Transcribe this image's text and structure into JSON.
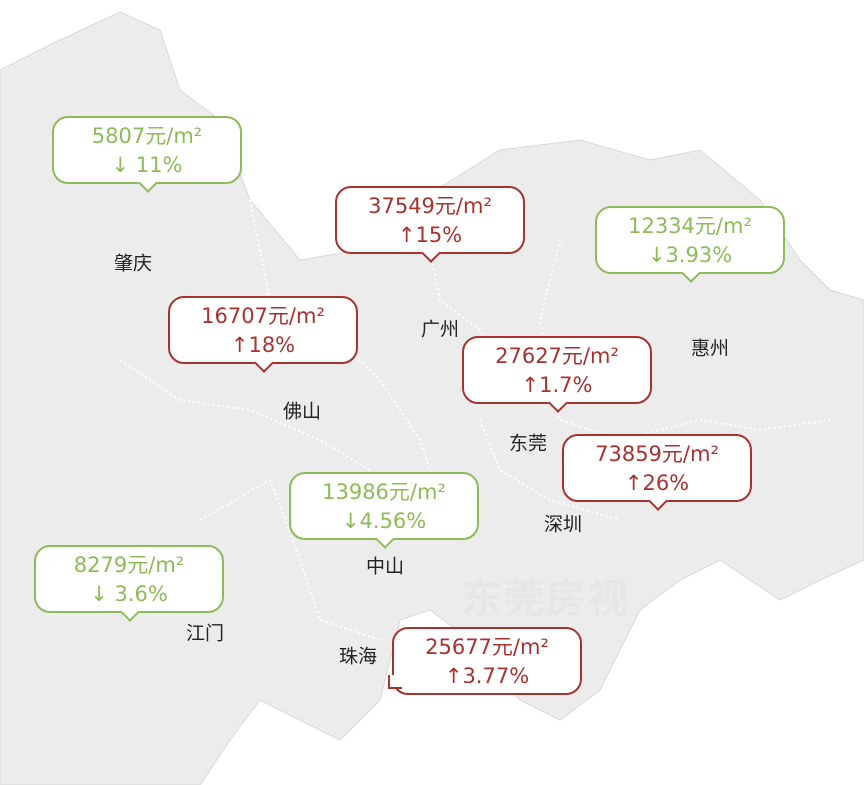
{
  "watermark": "东莞房视",
  "cities": [
    {
      "name": "肇庆",
      "price": "5807元/m²",
      "change": "↓ 11%",
      "color": "#8dbb5a"
    },
    {
      "name": "广州",
      "price": "37549元/m²",
      "change": "↑15%",
      "color": "#a83230"
    },
    {
      "name": "惠州",
      "price": "12334元/m²",
      "change": "↓3.93%",
      "color": "#8dbb5a"
    },
    {
      "name": "佛山",
      "price": "16707元/m²",
      "change": "↑18%",
      "color": "#a83230"
    },
    {
      "name": "东莞",
      "price": "27627元/m²",
      "change": "↑1.7%",
      "color": "#a83230"
    },
    {
      "name": "深圳",
      "price": "73859元/m²",
      "change": "↑26%",
      "color": "#a83230"
    },
    {
      "name": "中山",
      "price": "13986元/m²",
      "change": "↓4.56%",
      "color": "#8dbb5a"
    },
    {
      "name": "江门",
      "price": "8279元/m²",
      "change": "↓ 3.6%",
      "color": "#8dbb5a"
    },
    {
      "name": "珠海",
      "price": "25677元/m²",
      "change": "↑3.77%",
      "color": "#a83230"
    }
  ]
}
